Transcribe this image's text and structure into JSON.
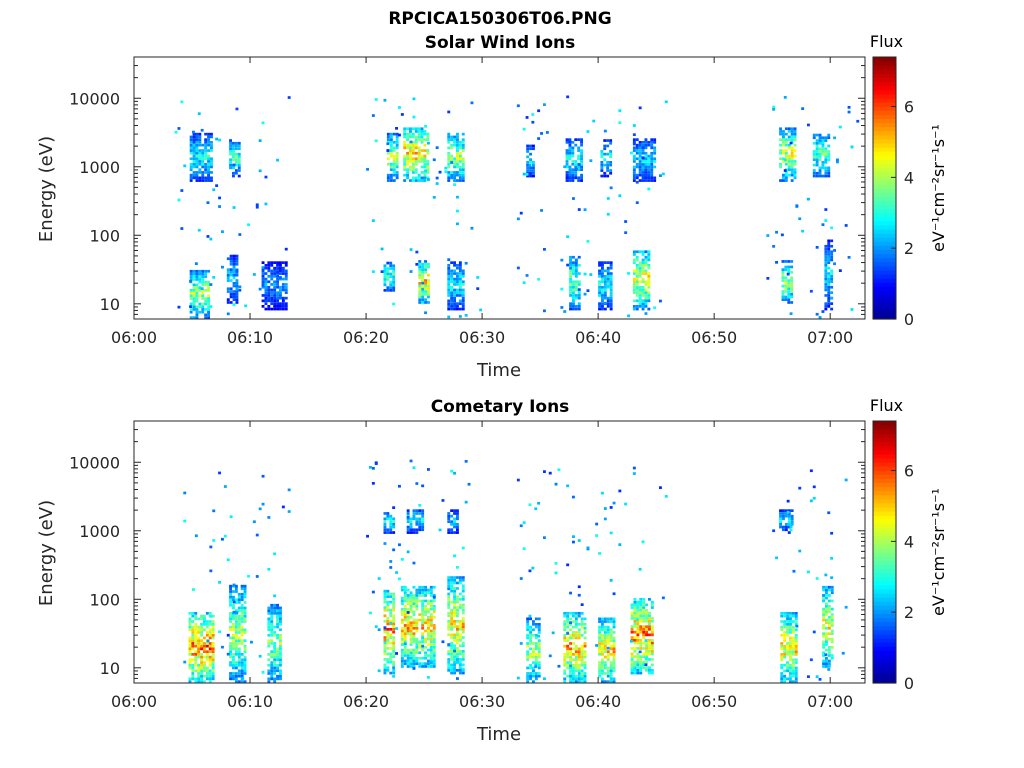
{
  "figure_title": "RPCICA150306T06.PNG",
  "colors": {
    "colormap": [
      "#00008f",
      "#0000ff",
      "#0080ff",
      "#00ffff",
      "#80ff80",
      "#ffff00",
      "#ff8000",
      "#ff0000",
      "#800000"
    ],
    "axes": "#262626",
    "background": "#ffffff"
  },
  "chart_data": [
    {
      "type": "heatmap",
      "title": "Solar Wind Ions",
      "xlabel": "Time",
      "ylabel": "Energy (eV)",
      "x_ticks": [
        "06:00",
        "06:10",
        "06:20",
        "06:30",
        "06:40",
        "06:50",
        "07:00"
      ],
      "y_ticks": [
        "10",
        "100",
        "1000",
        "10000"
      ],
      "y_scale": "log",
      "xlim_minutes": [
        0,
        63
      ],
      "ylim_eV": [
        6,
        40000
      ],
      "colorbar": {
        "title": "Flux",
        "label": "eV⁻¹cm⁻²sr⁻¹s⁻¹",
        "ticks": [
          "0",
          "2",
          "4",
          "6"
        ],
        "range": [
          0,
          7.4
        ]
      },
      "bursts": [
        {
          "t_start": 4.8,
          "t_end": 6.8,
          "band_eV": [
            600,
            3000
          ],
          "peak_flux": 3.5
        },
        {
          "t_start": 8.2,
          "t_end": 9.2,
          "band_eV": [
            700,
            2500
          ],
          "peak_flux": 4.0
        },
        {
          "t_start": 21.8,
          "t_end": 22.6,
          "band_eV": [
            600,
            3000
          ],
          "peak_flux": 4.8
        },
        {
          "t_start": 23.2,
          "t_end": 25.3,
          "band_eV": [
            600,
            3500
          ],
          "peak_flux": 6.2
        },
        {
          "t_start": 27.0,
          "t_end": 28.3,
          "band_eV": [
            600,
            3000
          ],
          "peak_flux": 5.0
        },
        {
          "t_start": 33.8,
          "t_end": 34.5,
          "band_eV": [
            700,
            2000
          ],
          "peak_flux": 3.2
        },
        {
          "t_start": 37.2,
          "t_end": 38.6,
          "band_eV": [
            600,
            2500
          ],
          "peak_flux": 3.5
        },
        {
          "t_start": 40.2,
          "t_end": 41.0,
          "band_eV": [
            700,
            2500
          ],
          "peak_flux": 3.3
        },
        {
          "t_start": 43.0,
          "t_end": 45.0,
          "band_eV": [
            600,
            2500
          ],
          "peak_flux": 3.2
        },
        {
          "t_start": 55.6,
          "t_end": 57.0,
          "band_eV": [
            600,
            3500
          ],
          "peak_flux": 5.3
        },
        {
          "t_start": 58.5,
          "t_end": 59.8,
          "band_eV": [
            700,
            3000
          ],
          "peak_flux": 4.2
        },
        {
          "t_start": 4.8,
          "t_end": 6.5,
          "band_eV": [
            6,
            30
          ],
          "peak_flux": 5.0
        },
        {
          "t_start": 8.0,
          "t_end": 9.0,
          "band_eV": [
            10,
            50
          ],
          "peak_flux": 3.0
        },
        {
          "t_start": 11.0,
          "t_end": 13.2,
          "band_eV": [
            8,
            40
          ],
          "peak_flux": 2.5
        },
        {
          "t_start": 21.5,
          "t_end": 22.5,
          "band_eV": [
            15,
            40
          ],
          "peak_flux": 4.0
        },
        {
          "t_start": 24.5,
          "t_end": 25.5,
          "band_eV": [
            10,
            40
          ],
          "peak_flux": 6.0
        },
        {
          "t_start": 27.0,
          "t_end": 28.5,
          "band_eV": [
            8,
            40
          ],
          "peak_flux": 3.5
        },
        {
          "t_start": 37.5,
          "t_end": 38.5,
          "band_eV": [
            8,
            50
          ],
          "peak_flux": 4.5
        },
        {
          "t_start": 40.0,
          "t_end": 41.2,
          "band_eV": [
            8,
            40
          ],
          "peak_flux": 3.5
        },
        {
          "t_start": 43.0,
          "t_end": 44.5,
          "band_eV": [
            8,
            60
          ],
          "peak_flux": 5.5
        },
        {
          "t_start": 55.8,
          "t_end": 56.8,
          "band_eV": [
            10,
            40
          ],
          "peak_flux": 5.0
        },
        {
          "t_start": 59.5,
          "t_end": 60.2,
          "band_eV": [
            8,
            80
          ],
          "peak_flux": 3.2
        }
      ],
      "scatter_time_ranges": [
        [
          3.5,
          13.5
        ],
        [
          19.5,
          30.0
        ],
        [
          33.0,
          46.0
        ],
        [
          54.5,
          62.5
        ]
      ]
    },
    {
      "type": "heatmap",
      "title": "Cometary Ions",
      "xlabel": "Time",
      "ylabel": "Energy (eV)",
      "x_ticks": [
        "06:00",
        "06:10",
        "06:20",
        "06:30",
        "06:40",
        "06:50",
        "07:00"
      ],
      "y_ticks": [
        "10",
        "100",
        "1000",
        "10000"
      ],
      "y_scale": "log",
      "xlim_minutes": [
        0,
        63
      ],
      "ylim_eV": [
        6,
        40000
      ],
      "colorbar": {
        "title": "Flux",
        "label": "eV⁻¹cm⁻²sr⁻¹s⁻¹",
        "ticks": [
          "0",
          "2",
          "4",
          "6"
        ],
        "range": [
          0,
          7.4
        ]
      },
      "bursts": [
        {
          "t_start": 4.7,
          "t_end": 6.8,
          "band_eV": [
            6,
            60
          ],
          "peak_flux": 7.0
        },
        {
          "t_start": 8.2,
          "t_end": 9.5,
          "band_eV": [
            6,
            150
          ],
          "peak_flux": 5.0
        },
        {
          "t_start": 11.5,
          "t_end": 12.7,
          "band_eV": [
            6,
            80
          ],
          "peak_flux": 4.8
        },
        {
          "t_start": 21.5,
          "t_end": 22.5,
          "band_eV": [
            8,
            150
          ],
          "peak_flux": 6.5
        },
        {
          "t_start": 23.0,
          "t_end": 26.0,
          "band_eV": [
            10,
            150
          ],
          "peak_flux": 6.2
        },
        {
          "t_start": 27.0,
          "t_end": 28.3,
          "band_eV": [
            8,
            200
          ],
          "peak_flux": 6.0
        },
        {
          "t_start": 33.8,
          "t_end": 35.0,
          "band_eV": [
            6,
            50
          ],
          "peak_flux": 5.0
        },
        {
          "t_start": 37.0,
          "t_end": 38.8,
          "band_eV": [
            6,
            60
          ],
          "peak_flux": 6.5
        },
        {
          "t_start": 40.0,
          "t_end": 41.3,
          "band_eV": [
            6,
            50
          ],
          "peak_flux": 6.0
        },
        {
          "t_start": 42.8,
          "t_end": 44.7,
          "band_eV": [
            8,
            100
          ],
          "peak_flux": 6.8
        },
        {
          "t_start": 55.7,
          "t_end": 57.0,
          "band_eV": [
            6,
            60
          ],
          "peak_flux": 6.0
        },
        {
          "t_start": 59.3,
          "t_end": 60.2,
          "band_eV": [
            10,
            150
          ],
          "peak_flux": 5.5
        },
        {
          "t_start": 21.5,
          "t_end": 22.5,
          "band_eV": [
            900,
            1800
          ],
          "peak_flux": 3.5
        },
        {
          "t_start": 23.5,
          "t_end": 25.0,
          "band_eV": [
            900,
            2000
          ],
          "peak_flux": 3.5
        },
        {
          "t_start": 27.0,
          "t_end": 28.0,
          "band_eV": [
            900,
            2000
          ],
          "peak_flux": 3.0
        },
        {
          "t_start": 55.6,
          "t_end": 56.8,
          "band_eV": [
            900,
            2000
          ],
          "peak_flux": 3.0
        }
      ],
      "scatter_time_ranges": [
        [
          4.0,
          13.5
        ],
        [
          20.0,
          29.0
        ],
        [
          33.0,
          46.0
        ],
        [
          55.0,
          61.5
        ]
      ]
    }
  ]
}
